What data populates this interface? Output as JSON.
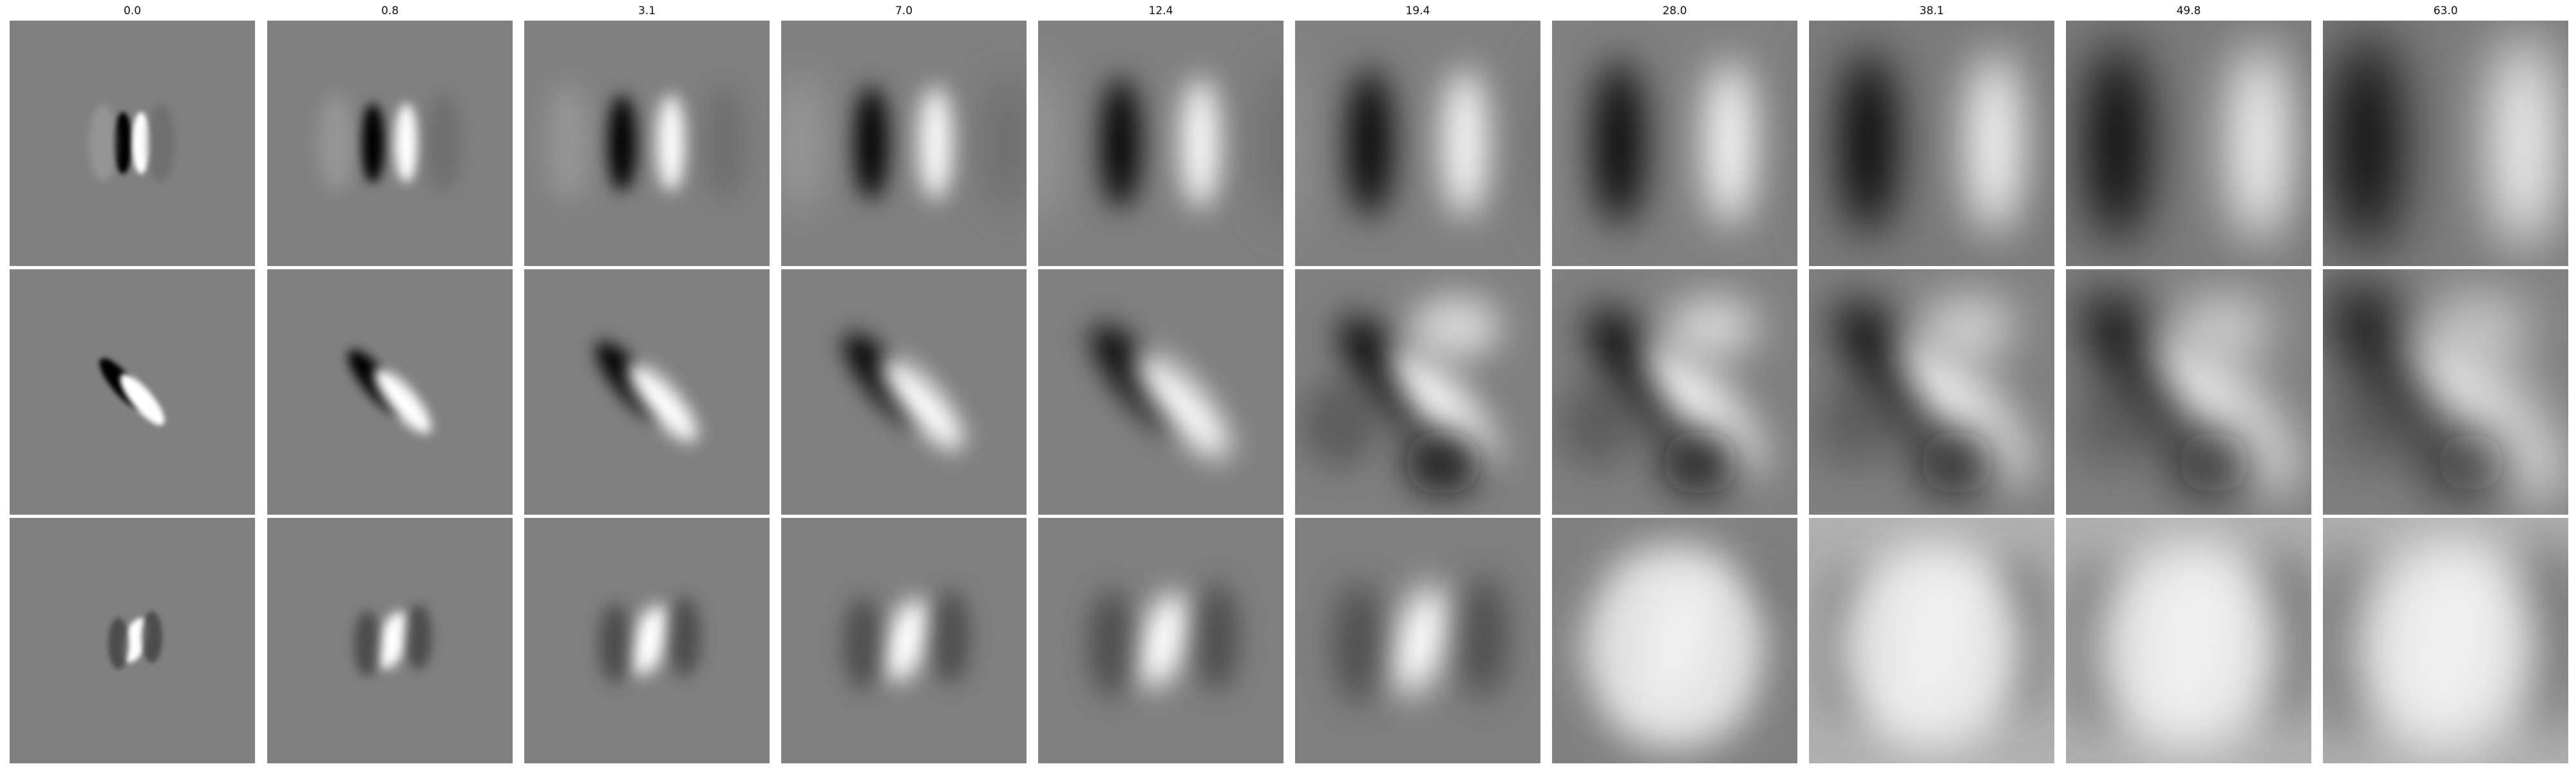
{
  "figure": {
    "column_titles": [
      "0.0",
      "0.8",
      "3.1",
      "7.0",
      "12.4",
      "19.4",
      "28.0",
      "38.1",
      "49.8",
      "63.0"
    ],
    "row_count": 3,
    "colormap": "grayscale",
    "background_gray": "#808080"
  }
}
